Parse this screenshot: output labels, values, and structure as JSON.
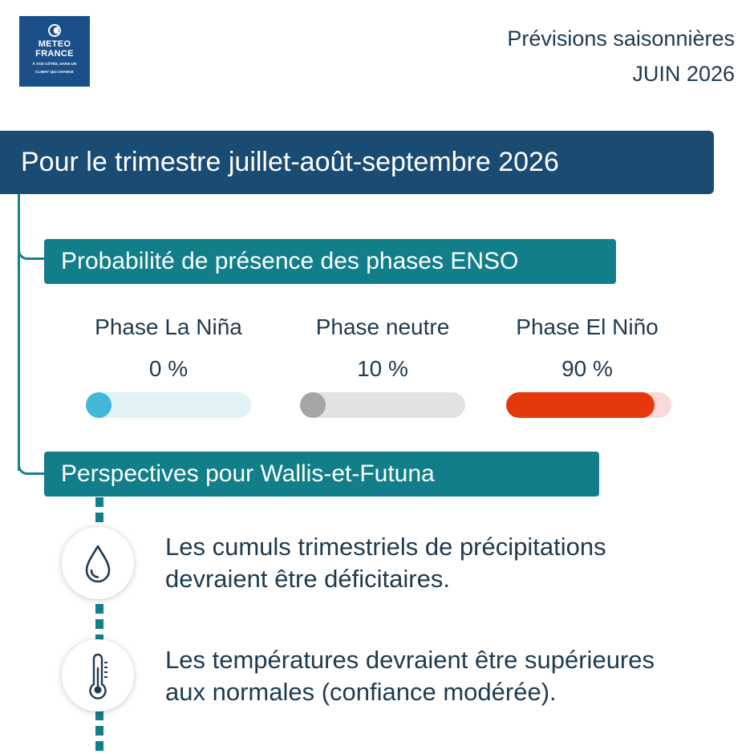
{
  "logo": {
    "name_line1": "METEO",
    "name_line2": "FRANCE",
    "tagline_line1": "À VOS CÔTÉS, DANS UN",
    "tagline_line2": "CLIMAT QUI CHANGE",
    "color": "#1b4f8a"
  },
  "header": {
    "title": "Prévisions saisonnières",
    "date": "JUIN 2026"
  },
  "period": {
    "title": "Pour le trimestre juillet-août-septembre 2026",
    "color": "#1a4b73"
  },
  "enso": {
    "label": "Probabilité de présence des phases ENSO",
    "color": "#117e8a",
    "phases": [
      {
        "name": "Phase La Niña",
        "value_text": "0 %",
        "value": 0,
        "fill_color": "#43b7da",
        "track_color": "#e1f2f7"
      },
      {
        "name": "Phase neutre",
        "value_text": "10 %",
        "value": 10,
        "fill_color": "#a5a5a5",
        "track_color": "#e4e1e1"
      },
      {
        "name": "Phase El Niño",
        "value_text": "90 %",
        "value": 90,
        "fill_color": "#e5390c",
        "track_color": "#f9d9d9"
      }
    ]
  },
  "outlook": {
    "label": "Perspectives pour Wallis-et-Futuna",
    "items": [
      {
        "icon": "water-drop-icon",
        "line1": "Les cumuls trimestriels de précipitations",
        "line2": "devraient être déficitaires."
      },
      {
        "icon": "thermometer-icon",
        "line1": "Les températures devraient être supérieures",
        "line2": "aux normales (confiance modérée)."
      }
    ]
  }
}
